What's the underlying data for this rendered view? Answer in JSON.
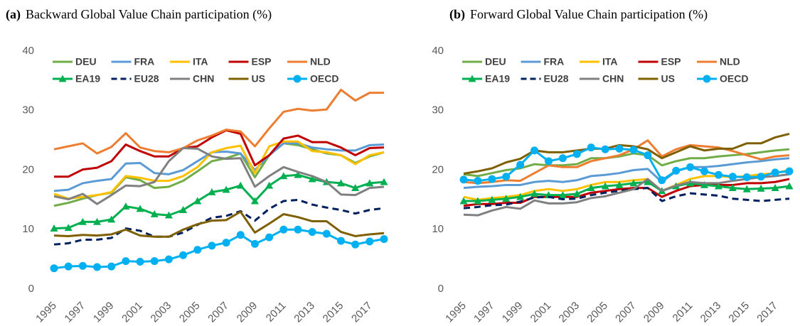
{
  "chart_data": [
    {
      "type": "line",
      "panel_label": "(a)",
      "title": "Backward Global Value Chain participation (%)",
      "x": [
        1995,
        1996,
        1997,
        1998,
        1999,
        2000,
        2001,
        2002,
        2003,
        2004,
        2005,
        2006,
        2007,
        2008,
        2009,
        2010,
        2011,
        2012,
        2013,
        2014,
        2015,
        2016,
        2017,
        2018
      ],
      "xlim": [
        1995,
        2018
      ],
      "xticks": [
        1995,
        1997,
        1999,
        2001,
        2003,
        2005,
        2007,
        2009,
        2011,
        2013,
        2015,
        2017
      ],
      "ylim": [
        0,
        40
      ],
      "yticks": [
        0,
        10,
        20,
        30,
        40
      ],
      "grid": false,
      "legend": "top",
      "series": [
        {
          "name": "DEU",
          "color": "#70ad47",
          "values": [
            14.0,
            14.5,
            15.2,
            15.8,
            16.2,
            18.8,
            18.3,
            17.0,
            17.2,
            18.2,
            19.8,
            21.5,
            22.0,
            22.8,
            18.8,
            22.5,
            24.5,
            24.2,
            23.5,
            22.8,
            22.5,
            21.2,
            22.3,
            23.0
          ]
        },
        {
          "name": "FRA",
          "color": "#5b9bd5",
          "values": [
            16.5,
            16.7,
            17.8,
            18.2,
            18.5,
            21.1,
            21.2,
            19.5,
            19.3,
            20.0,
            21.5,
            23.0,
            23.1,
            22.8,
            20.0,
            22.5,
            24.5,
            24.5,
            23.8,
            23.5,
            23.3,
            23.3,
            24.2,
            24.3
          ]
        },
        {
          "name": "ITA",
          "color": "#ffc000",
          "values": [
            16.0,
            15.2,
            15.5,
            15.8,
            16.3,
            19.0,
            18.7,
            18.2,
            18.2,
            19.0,
            20.5,
            23.0,
            23.7,
            24.1,
            19.5,
            24.0,
            24.8,
            24.8,
            23.2,
            23.0,
            22.5,
            21.0,
            22.5,
            23.0
          ]
        },
        {
          "name": "ESP",
          "color": "#c00000",
          "values": [
            18.9,
            18.9,
            20.1,
            20.4,
            21.5,
            24.3,
            23.2,
            22.3,
            22.3,
            23.7,
            24.0,
            25.5,
            26.7,
            26.1,
            20.8,
            22.5,
            25.3,
            25.8,
            24.7,
            24.7,
            23.8,
            22.5,
            23.7,
            23.8
          ]
        },
        {
          "name": "NLD",
          "color": "#ed7d31",
          "values": [
            23.5,
            24.0,
            24.5,
            22.8,
            23.9,
            26.2,
            23.8,
            23.2,
            23.0,
            23.7,
            25.0,
            25.8,
            26.8,
            26.5,
            24.0,
            27.0,
            29.8,
            30.3,
            30.0,
            30.2,
            33.5,
            31.7,
            33.0,
            33.0
          ]
        },
        {
          "name": "EA19",
          "color": "#00b050",
          "marker": "triangle",
          "values": [
            10.2,
            10.3,
            11.3,
            11.3,
            11.7,
            13.9,
            13.5,
            12.6,
            12.4,
            13.3,
            14.8,
            16.3,
            16.7,
            17.4,
            14.8,
            17.4,
            19.0,
            19.2,
            18.5,
            18.0,
            17.8,
            17.0,
            17.8,
            18.0
          ]
        },
        {
          "name": "EU28",
          "color": "#002060",
          "dash": true,
          "values": [
            7.5,
            7.7,
            8.3,
            8.3,
            8.6,
            10.2,
            9.8,
            8.8,
            8.8,
            9.5,
            10.8,
            12.0,
            12.3,
            13.1,
            11.5,
            13.5,
            14.8,
            15.0,
            14.2,
            13.7,
            13.3,
            12.7,
            13.3,
            13.6
          ]
        },
        {
          "name": "CHN",
          "color": "#808080",
          "values": [
            15.6,
            15.1,
            16.0,
            14.3,
            15.8,
            17.4,
            17.3,
            18.0,
            21.5,
            23.7,
            23.6,
            22.3,
            21.9,
            22.0,
            17.2,
            19.0,
            20.5,
            19.7,
            19.0,
            18.0,
            15.9,
            15.8,
            17.0,
            17.2
          ]
        },
        {
          "name": "US",
          "color": "#7f6000",
          "values": [
            9.0,
            8.9,
            9.1,
            9.0,
            9.2,
            10.0,
            9.0,
            8.8,
            8.8,
            10.0,
            10.9,
            11.5,
            11.6,
            13.0,
            9.5,
            11.0,
            12.6,
            12.1,
            11.4,
            11.4,
            9.6,
            8.9,
            9.2,
            9.4
          ]
        },
        {
          "name": "OECD",
          "color": "#00b0f0",
          "marker": "circle",
          "values": [
            3.5,
            3.8,
            3.9,
            3.7,
            3.8,
            4.7,
            4.6,
            4.7,
            5.0,
            5.7,
            6.6,
            7.3,
            7.8,
            9.1,
            7.6,
            8.7,
            10.0,
            10.0,
            9.6,
            9.3,
            8.1,
            7.5,
            8.0,
            8.4
          ]
        }
      ]
    },
    {
      "type": "line",
      "panel_label": "(b)",
      "title": "Forward Global Value Chain participation (%)",
      "x": [
        1995,
        1996,
        1997,
        1998,
        1999,
        2000,
        2001,
        2002,
        2003,
        2004,
        2005,
        2006,
        2007,
        2008,
        2009,
        2010,
        2011,
        2012,
        2013,
        2014,
        2015,
        2016,
        2017,
        2018
      ],
      "xlim": [
        1995,
        2018
      ],
      "xticks": [
        1995,
        1997,
        1999,
        2001,
        2003,
        2005,
        2007,
        2009,
        2011,
        2013,
        2015,
        2017
      ],
      "ylim": [
        0,
        40
      ],
      "yticks": [
        0,
        10,
        20,
        30,
        40
      ],
      "grid": false,
      "legend": "top",
      "series": [
        {
          "name": "DEU",
          "color": "#70ad47",
          "values": [
            19.3,
            19.0,
            19.5,
            20.0,
            20.3,
            21.0,
            20.8,
            20.8,
            21.0,
            22.0,
            22.0,
            22.3,
            22.8,
            22.5,
            20.8,
            21.5,
            22.0,
            22.0,
            22.3,
            22.5,
            22.7,
            23.0,
            23.3,
            23.5
          ]
        },
        {
          "name": "FRA",
          "color": "#5b9bd5",
          "values": [
            17.0,
            17.2,
            17.3,
            17.5,
            17.5,
            18.0,
            18.2,
            18.0,
            18.3,
            19.0,
            19.2,
            19.5,
            20.0,
            20.2,
            18.0,
            19.8,
            20.5,
            20.5,
            20.7,
            21.0,
            21.3,
            21.5,
            21.8,
            22.0
          ]
        },
        {
          "name": "ITA",
          "color": "#ffc000",
          "values": [
            15.5,
            15.0,
            15.3,
            15.5,
            15.8,
            16.5,
            16.8,
            16.5,
            16.8,
            17.5,
            18.0,
            18.0,
            18.3,
            18.5,
            16.5,
            17.5,
            18.5,
            19.0,
            19.0,
            18.8,
            19.0,
            19.3,
            19.5,
            20.0
          ]
        },
        {
          "name": "ESP",
          "color": "#c00000",
          "values": [
            14.0,
            14.3,
            14.3,
            14.5,
            14.5,
            15.5,
            15.5,
            15.5,
            15.5,
            16.2,
            16.5,
            16.8,
            17.0,
            17.0,
            15.5,
            16.5,
            17.3,
            17.5,
            17.5,
            17.5,
            17.8,
            17.8,
            18.0,
            18.5
          ]
        },
        {
          "name": "NLD",
          "color": "#ed7d31",
          "values": [
            18.0,
            17.8,
            18.0,
            18.3,
            18.2,
            19.5,
            20.8,
            20.5,
            20.5,
            21.5,
            22.0,
            22.5,
            23.5,
            25.0,
            22.3,
            23.5,
            24.2,
            24.0,
            23.8,
            23.2,
            22.5,
            21.8,
            22.3,
            22.5
          ]
        },
        {
          "name": "EA19",
          "color": "#00b050",
          "marker": "triangle",
          "values": [
            14.8,
            14.8,
            15.0,
            15.2,
            15.5,
            16.0,
            15.8,
            15.8,
            16.0,
            17.0,
            17.3,
            17.5,
            17.8,
            18.0,
            16.5,
            17.3,
            17.8,
            17.5,
            17.3,
            17.0,
            16.8,
            16.9,
            17.0,
            17.3
          ]
        },
        {
          "name": "EU28",
          "color": "#002060",
          "dash": true,
          "values": [
            13.6,
            13.8,
            14.1,
            14.2,
            14.7,
            15.4,
            15.5,
            15.1,
            15.2,
            15.8,
            16.2,
            16.5,
            16.8,
            17.0,
            14.8,
            15.6,
            16.1,
            15.9,
            15.7,
            15.2,
            15.0,
            14.8,
            15.0,
            15.2
          ]
        },
        {
          "name": "CHN",
          "color": "#808080",
          "values": [
            12.5,
            12.4,
            13.2,
            13.8,
            13.5,
            14.9,
            14.4,
            14.4,
            14.6,
            15.3,
            15.6,
            16.2,
            16.8,
            18.5,
            16.5,
            17.4,
            18.0,
            17.8,
            17.8,
            18.2,
            18.5,
            18.8,
            19.0,
            19.3
          ]
        },
        {
          "name": "US",
          "color": "#7f6000",
          "values": [
            19.4,
            19.8,
            20.3,
            21.3,
            21.9,
            23.3,
            23.0,
            23.0,
            23.3,
            23.6,
            23.6,
            24.2,
            24.0,
            23.5,
            22.0,
            23.0,
            24.0,
            23.3,
            23.6,
            23.6,
            24.5,
            24.5,
            25.5,
            26.1
          ]
        },
        {
          "name": "OECD",
          "color": "#00b0f0",
          "marker": "circle",
          "values": [
            18.4,
            18.2,
            18.5,
            18.9,
            20.9,
            23.3,
            21.5,
            22.0,
            22.7,
            23.8,
            23.5,
            23.6,
            23.4,
            22.5,
            18.3,
            19.9,
            20.5,
            19.8,
            19.2,
            18.9,
            18.8,
            18.9,
            19.6,
            19.8
          ]
        }
      ]
    }
  ]
}
